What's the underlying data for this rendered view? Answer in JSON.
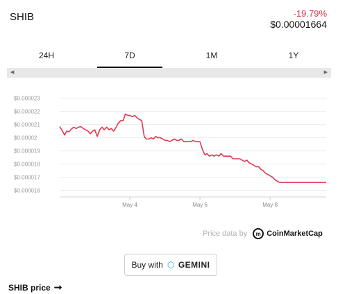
{
  "header": {
    "coin": "SHIB",
    "change": "-19.79%",
    "price": "$0.00001664"
  },
  "tabs": [
    {
      "label": "24H",
      "active": false
    },
    {
      "label": "7D",
      "active": true
    },
    {
      "label": "1M",
      "active": false
    },
    {
      "label": "1Y",
      "active": false
    }
  ],
  "scrollbar": {
    "left_icon": "triangle-left-icon",
    "right_icon": "triangle-right-icon"
  },
  "chart_data": {
    "type": "line",
    "ylim": [
      1.55e-05,
      2.33e-05
    ],
    "y_ticks": [
      2.3e-05,
      2.2e-05,
      2.1e-05,
      2e-05,
      1.9e-05,
      1.8e-05,
      1.7e-05,
      1.6e-05
    ],
    "y_tick_labels": [
      "$0.000023",
      "$0.000022",
      "$0.000021",
      "$0.00002",
      "$0.000019",
      "$0.000018",
      "$0.000017",
      "$0.000016"
    ],
    "xlim": [
      0,
      7.6
    ],
    "x_ticks": [
      2,
      4,
      6
    ],
    "x_tick_labels": [
      "May 4",
      "May 6",
      "May 8"
    ],
    "grid": true,
    "line_color": "#e0394f",
    "series": [
      {
        "x": [
          0,
          0.07,
          0.14,
          0.2,
          0.27,
          0.33,
          0.4,
          0.47,
          0.54,
          0.6,
          0.67,
          0.74,
          0.81,
          0.87,
          0.94,
          1.0,
          1.07,
          1.14,
          1.21,
          1.27,
          1.34,
          1.41,
          1.47,
          1.54,
          1.61,
          1.67,
          1.74,
          1.81,
          1.87,
          1.94,
          2.0,
          2.07,
          2.14,
          2.21,
          2.27,
          2.34,
          2.41,
          2.47,
          2.54,
          2.61,
          2.67,
          2.74,
          2.8,
          2.87,
          2.94,
          3.0,
          3.07,
          3.14,
          3.2,
          3.27,
          3.34,
          3.4,
          3.47,
          3.54,
          3.6,
          3.67,
          3.74,
          3.8,
          3.87,
          3.94,
          4.0,
          4.07,
          4.14,
          4.2,
          4.27,
          4.34,
          4.4,
          4.47,
          4.54,
          4.6,
          4.67,
          4.74,
          4.8,
          4.87,
          4.94,
          5.0,
          5.07,
          5.14,
          5.2,
          5.27,
          5.34,
          5.4,
          5.47,
          5.54,
          5.6,
          5.67,
          5.74,
          5.8,
          5.87,
          5.94,
          6.0,
          6.07,
          6.14,
          6.2,
          6.27,
          6.34,
          6.4,
          6.47,
          6.54,
          6.6,
          6.67,
          6.74,
          6.8,
          6.87,
          6.94,
          7.0,
          7.07,
          7.14,
          7.2,
          7.27,
          7.34,
          7.4,
          7.47,
          7.54,
          7.6
        ],
        "y": [
          2.085e-05,
          2.055e-05,
          2.02e-05,
          2.05e-05,
          2.045e-05,
          2.065e-05,
          2.08e-05,
          2.07e-05,
          2.08e-05,
          2.085e-05,
          2.07e-05,
          2.06e-05,
          2.05e-05,
          2.03e-05,
          2.05e-05,
          2.06e-05,
          2.01e-05,
          2.06e-05,
          2.08e-05,
          2.06e-05,
          2.08e-05,
          2.06e-05,
          2.07e-05,
          2.05e-05,
          2.08e-05,
          2.11e-05,
          2.13e-05,
          2.13e-05,
          2.18e-05,
          2.17e-05,
          2.17e-05,
          2.16e-05,
          2.17e-05,
          2.15e-05,
          2.14e-05,
          2.13e-05,
          2.01e-05,
          1.99e-05,
          1.99e-05,
          2e-05,
          1.99e-05,
          2.01e-05,
          2e-05,
          2e-05,
          1.99e-05,
          1.98e-05,
          1.98e-05,
          1.97e-05,
          1.98e-05,
          1.99e-05,
          1.98e-05,
          1.98e-05,
          1.99e-05,
          1.97e-05,
          1.97e-05,
          1.97e-05,
          1.97e-05,
          1.98e-05,
          1.97e-05,
          1.97e-05,
          1.97e-05,
          1.91e-05,
          1.87e-05,
          1.88e-05,
          1.86e-05,
          1.87e-05,
          1.86e-05,
          1.87e-05,
          1.86e-05,
          1.88e-05,
          1.86e-05,
          1.86e-05,
          1.86e-05,
          1.86e-05,
          1.84e-05,
          1.84e-05,
          1.84e-05,
          1.84e-05,
          1.83e-05,
          1.82e-05,
          1.83e-05,
          1.81e-05,
          1.8e-05,
          1.79e-05,
          1.78e-05,
          1.78e-05,
          1.76e-05,
          1.75e-05,
          1.73e-05,
          1.72e-05,
          1.71e-05,
          1.7e-05,
          1.68e-05,
          1.67e-05,
          1.66e-05,
          1.66e-05,
          1.66e-05,
          1.66e-05,
          1.66e-05,
          1.66e-05,
          1.66e-05,
          1.66e-05,
          1.66e-05,
          1.66e-05,
          1.66e-05,
          1.66e-05,
          1.66e-05,
          1.66e-05,
          1.66e-05,
          1.66e-05,
          1.66e-05,
          1.66e-05,
          1.66e-05,
          1.66e-05,
          1.66e-05
        ]
      }
    ]
  },
  "attribution": {
    "label": "Price data by",
    "brand": "CoinMarketCap",
    "logo_icon": "coinmarketcap-icon"
  },
  "buy_button": {
    "label": "Buy with",
    "brand": "GEMINI",
    "icon": "gemini-icon"
  },
  "footer": {
    "link": "SHIB price",
    "icon": "arrow-right-icon"
  }
}
